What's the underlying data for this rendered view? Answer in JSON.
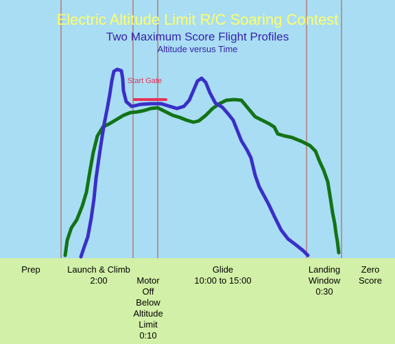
{
  "title": "Electric Altitude Limit R/C Soaring Contest",
  "subtitle": "Two Maximum Score Flight Profiles",
  "sub_subtitle": "Altitude versus Time",
  "start_gate": "Start Gate",
  "phases": [
    {
      "lines": [
        "Prep"
      ]
    },
    {
      "lines": [
        "Launch & Climb",
        "2:00"
      ]
    },
    {
      "lines": [
        "Motor",
        "Off",
        "Below",
        "Altitude",
        "Limit",
        "0:10"
      ]
    },
    {
      "lines": [
        "Glide",
        "10:00 to 15:00"
      ]
    },
    {
      "lines": [
        "Landing",
        "Window",
        "0:30"
      ]
    },
    {
      "lines": [
        "Zero",
        "Score"
      ]
    }
  ],
  "colors": {
    "sky": "#a9ddf3",
    "ground": "#d2f0a7",
    "title": "#ffff66",
    "subtitle": "#3322aa",
    "divider": "#b84a3a",
    "profile_a": "#3a2fc8",
    "profile_b": "#137317",
    "start_gate": "#e8305a"
  }
}
